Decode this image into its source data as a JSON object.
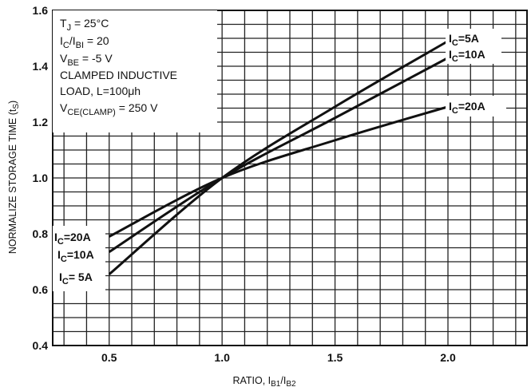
{
  "chart_data": {
    "type": "line",
    "xlabel": "RATIO, I",
    "xlabel_sub1": "B1",
    "xlabel_sep": "/I",
    "xlabel_sub2": "B2",
    "ylabel": "NORMALIZE STORAGE TIME (t",
    "ylabel_sub": "S",
    "ylabel_close": ")",
    "xlim": [
      0.25,
      2.35
    ],
    "ylim": [
      0.4,
      1.6
    ],
    "x_ticks": [
      {
        "value": 0.5,
        "label": "0.5"
      },
      {
        "value": 1.0,
        "label": "1.0"
      },
      {
        "value": 1.5,
        "label": "1.5"
      },
      {
        "value": 2.0,
        "label": "2.0"
      }
    ],
    "y_ticks": [
      {
        "value": 0.4,
        "label": "0.4"
      },
      {
        "value": 0.6,
        "label": "0.6"
      },
      {
        "value": 0.8,
        "label": "0.8"
      },
      {
        "value": 1.0,
        "label": "1.0"
      },
      {
        "value": 1.2,
        "label": "1.2"
      },
      {
        "value": 1.4,
        "label": "1.4"
      },
      {
        "value": 1.6,
        "label": "1.6"
      }
    ],
    "grid": true,
    "annotations": [
      {
        "main": "T",
        "sub": "J",
        "rest": " = 25°C"
      },
      {
        "main": "I",
        "sub": "C",
        "rest": "/I",
        "sub2": "BI",
        "rest2": " = 20"
      },
      {
        "main": "V",
        "sub": "BE",
        "rest": " = -5 V"
      },
      {
        "main": "CLAMPED INDUCTIVE",
        "sub": "",
        "rest": ""
      },
      {
        "main": "  LOAD, L=100μh",
        "sub": "",
        "rest": ""
      },
      {
        "main": "V",
        "sub": "CE(CLAMP)",
        "rest": " = 250 V"
      }
    ],
    "series": [
      {
        "label_main": "I",
        "label_sub": "C",
        "label_rest": "=5A",
        "label_left_rest": "= 5A",
        "x": [
          0.5,
          1.0,
          1.5,
          2.0
        ],
        "y": [
          0.655,
          1.0,
          1.255,
          1.49
        ]
      },
      {
        "label_main": "I",
        "label_sub": "C",
        "label_rest": "=10A",
        "label_left_rest": "=10A",
        "x": [
          0.5,
          1.0,
          1.5,
          2.0
        ],
        "y": [
          0.735,
          1.0,
          1.215,
          1.43
        ]
      },
      {
        "label_main": "I",
        "label_sub": "C",
        "label_rest": "=20A",
        "label_left_rest": "=20A",
        "x": [
          0.5,
          1.0,
          1.5,
          2.0
        ],
        "y": [
          0.79,
          1.0,
          1.135,
          1.255
        ]
      }
    ]
  }
}
